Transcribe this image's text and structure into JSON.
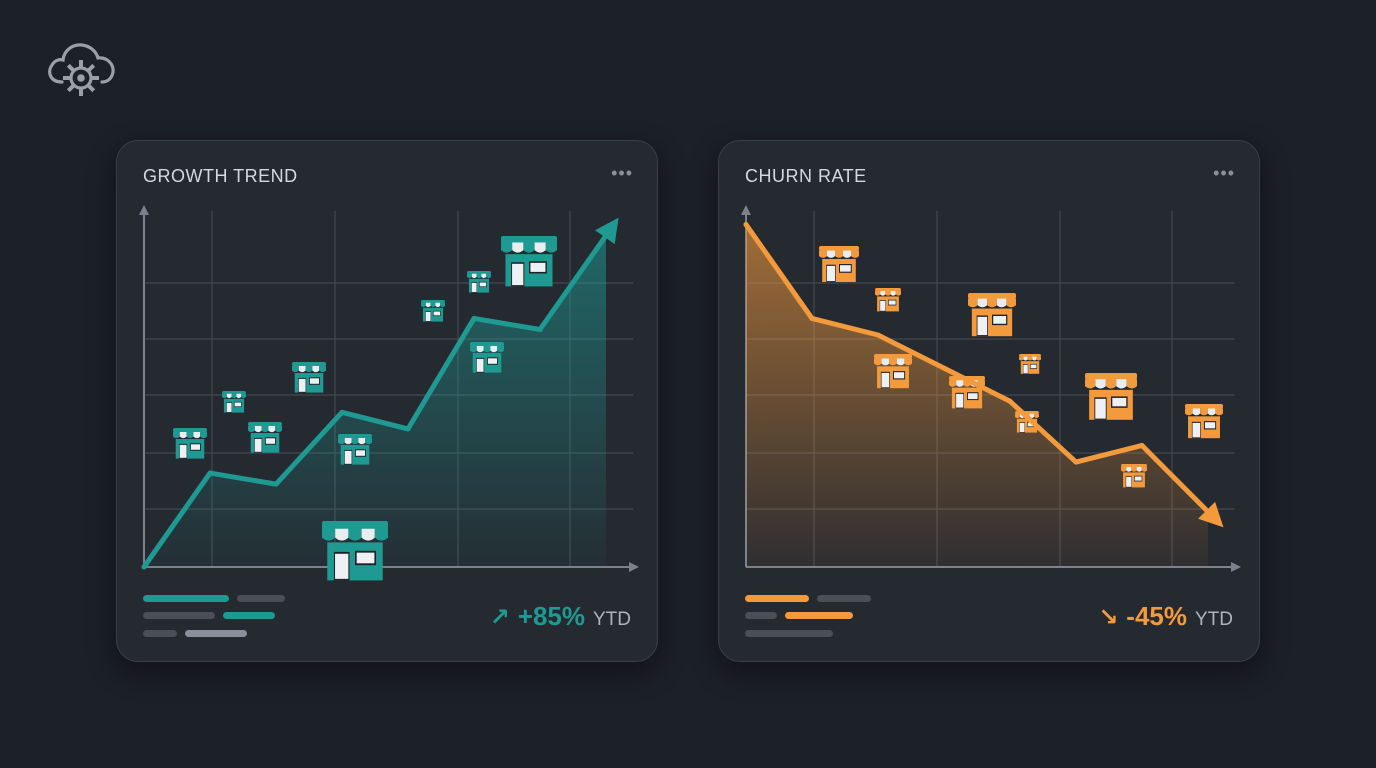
{
  "logo": {
    "icon": "cloud-gear-icon"
  },
  "chart_data": [
    {
      "type": "area",
      "title": "GROWTH TREND",
      "color": "#1e9a93",
      "trend": "up",
      "icon": "storefront-icon",
      "stat": {
        "arrow": "↗",
        "value": "+85%",
        "unit": "YTD"
      },
      "x": [
        0,
        1,
        2,
        3,
        4,
        5,
        6,
        7
      ],
      "series": [
        {
          "values": [
            0,
            17,
            15,
            28,
            25,
            45,
            43,
            60
          ]
        }
      ],
      "ylim": [
        0,
        63
      ],
      "grid": true,
      "legend_bars": [
        {
          "color": "#1e9a93"
        },
        {
          "color": "#4a4f57"
        },
        {
          "color": "#4a4f57"
        },
        {
          "color": "#1e9a93"
        },
        {
          "color": "#4a4f57"
        },
        {
          "color": "#8a9099"
        }
      ]
    },
    {
      "type": "area",
      "title": "CHURN RATE",
      "color": "#f39a3c",
      "trend": "down",
      "icon": "storefront-icon",
      "stat": {
        "arrow": "↘",
        "value": "-45%",
        "unit": "YTD"
      },
      "x": [
        0,
        1,
        2,
        3,
        4,
        5,
        6,
        7
      ],
      "series": [
        {
          "values": [
            62,
            45,
            42,
            36,
            30,
            19,
            22,
            10
          ]
        }
      ],
      "ylim": [
        0,
        63
      ],
      "grid": true,
      "legend_bars": [
        {
          "color": "#f39a3c"
        },
        {
          "color": "#4a4f57"
        },
        {
          "color": "#4a4f57"
        },
        {
          "color": "#f39a3c"
        },
        {
          "color": "#4a4f57"
        }
      ]
    }
  ]
}
